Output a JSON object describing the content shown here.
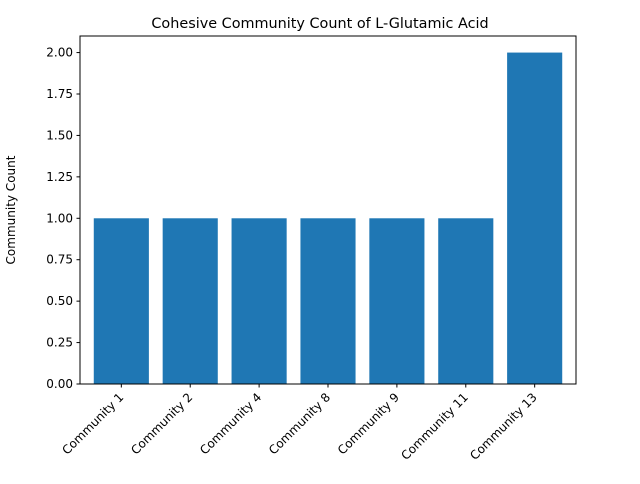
{
  "chart_data": {
    "type": "bar",
    "title": "Cohesive Community Count of L-Glutamic Acid",
    "xlabel": "",
    "ylabel": "Community Count",
    "categories": [
      "Community 1",
      "Community 2",
      "Community 4",
      "Community 8",
      "Community 9",
      "Community 11",
      "Community 13"
    ],
    "values": [
      1,
      1,
      1,
      1,
      1,
      1,
      2
    ],
    "ylim": [
      0,
      2.1
    ],
    "yticks": [
      "0.00",
      "0.25",
      "0.50",
      "0.75",
      "1.00",
      "1.25",
      "1.50",
      "1.75",
      "2.00"
    ],
    "bar_color": "#1f77b4",
    "grid": false,
    "legend": "none"
  }
}
